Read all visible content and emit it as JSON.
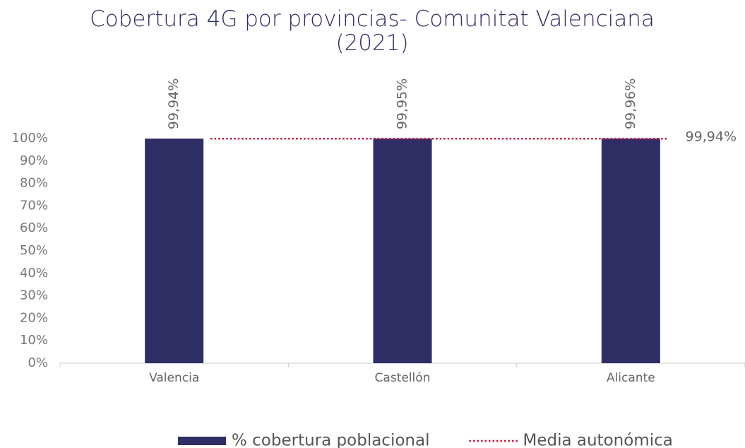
{
  "chart_data": {
    "type": "bar",
    "title": "Cobertura 4G por provincias- Comunitat Valenciana (2021)",
    "categories": [
      "Valencia",
      "Castellón",
      "Alicante"
    ],
    "series": [
      {
        "name": "% cobertura poblacional",
        "type": "bar",
        "color": "#2e2d64",
        "values": [
          99.94,
          99.95,
          99.96
        ],
        "value_labels": [
          "99,94%",
          "99,95%",
          "99,96%"
        ]
      },
      {
        "name": "Media autonómica",
        "type": "line",
        "color": "#c0143c",
        "values": [
          99.94,
          99.94,
          99.94
        ],
        "value_labels": [
          null,
          null,
          "99,94%"
        ]
      }
    ],
    "ylim": [
      0,
      100
    ],
    "yticks": [
      {
        "value": 0,
        "label": "0%"
      },
      {
        "value": 10,
        "label": "10%"
      },
      {
        "value": 20,
        "label": "20%"
      },
      {
        "value": 30,
        "label": "30%"
      },
      {
        "value": 40,
        "label": "40%"
      },
      {
        "value": 50,
        "label": "50%"
      },
      {
        "value": 60,
        "label": "60%"
      },
      {
        "value": 70,
        "label": "70%"
      },
      {
        "value": 80,
        "label": "80%"
      },
      {
        "value": 90,
        "label": "90%"
      },
      {
        "value": 100,
        "label": "100%"
      }
    ],
    "grid": false,
    "legend": "bottom"
  }
}
